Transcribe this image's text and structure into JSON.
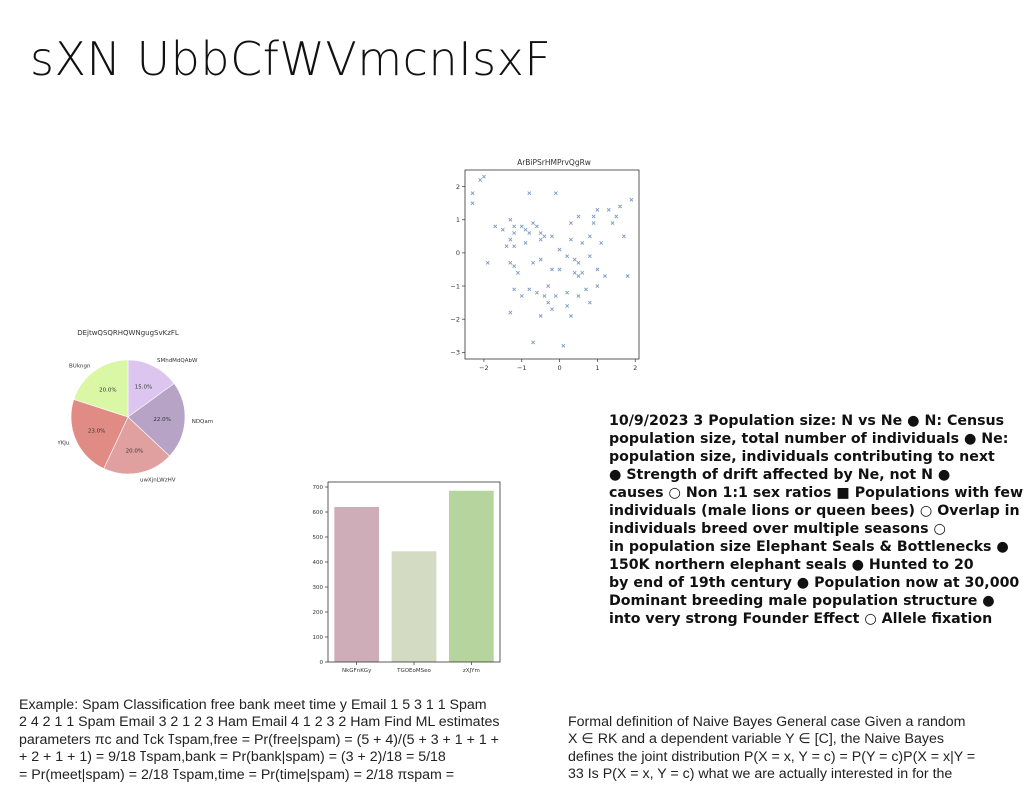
{
  "title": "sXN UbbCfWVmcnIsxF",
  "chart_data": [
    {
      "type": "scatter",
      "title": "ArBiPSrHMPrvQgRw",
      "marker": "x",
      "color": "#7a9cc6",
      "xlim": [
        -2.5,
        2.1
      ],
      "ylim": [
        -3.2,
        2.5
      ],
      "xticks": [
        "−2",
        "−1",
        "0",
        "1",
        "2"
      ],
      "yticks": [
        "2",
        "1",
        "0",
        "−1",
        "−2",
        "−3"
      ],
      "xtick_values": [
        -2,
        -1,
        0,
        1,
        2
      ],
      "ytick_values": [
        2,
        1,
        0,
        -1,
        -2,
        -3
      ],
      "points": [
        [
          -2.3,
          1.8
        ],
        [
          -2.3,
          1.5
        ],
        [
          -2.0,
          2.3
        ],
        [
          -2.1,
          2.2
        ],
        [
          -1.7,
          0.8
        ],
        [
          -1.9,
          -0.3
        ],
        [
          -1.4,
          0.2
        ],
        [
          -1.3,
          1.0
        ],
        [
          -1.2,
          0.8
        ],
        [
          -1.2,
          0.6
        ],
        [
          -1.3,
          0.4
        ],
        [
          -1.2,
          0.2
        ],
        [
          -1.3,
          -0.3
        ],
        [
          -1.2,
          -0.4
        ],
        [
          -1.0,
          0.8
        ],
        [
          -0.9,
          0.7
        ],
        [
          -0.8,
          0.6
        ],
        [
          -0.8,
          1.8
        ],
        [
          -0.9,
          0.3
        ],
        [
          -1.1,
          -0.6
        ],
        [
          -1.0,
          -1.3
        ],
        [
          -1.2,
          -1.1
        ],
        [
          -1.3,
          -1.8
        ],
        [
          -0.8,
          -1.1
        ],
        [
          -0.7,
          -0.3
        ],
        [
          -0.7,
          0.9
        ],
        [
          -0.6,
          0.8
        ],
        [
          -0.5,
          0.6
        ],
        [
          -0.5,
          0.4
        ],
        [
          -0.5,
          -0.2
        ],
        [
          -0.6,
          -1.2
        ],
        [
          -0.4,
          -1.3
        ],
        [
          -0.5,
          -1.9
        ],
        [
          -0.3,
          -1.5
        ],
        [
          -0.3,
          -1.0
        ],
        [
          -0.2,
          0.5
        ],
        [
          -0.2,
          -0.5
        ],
        [
          -0.1,
          1.8
        ],
        [
          0.0,
          0.1
        ],
        [
          0.0,
          -0.5
        ],
        [
          -0.1,
          -1.3
        ],
        [
          0.2,
          -1.2
        ],
        [
          0.2,
          -1.6
        ],
        [
          0.3,
          -1.9
        ],
        [
          0.3,
          0.4
        ],
        [
          0.4,
          -0.2
        ],
        [
          0.4,
          -0.6
        ],
        [
          0.5,
          -0.7
        ],
        [
          0.5,
          -0.3
        ],
        [
          0.5,
          -1.3
        ],
        [
          0.5,
          1.1
        ],
        [
          0.6,
          0.3
        ],
        [
          0.6,
          -0.6
        ],
        [
          0.7,
          -1.1
        ],
        [
          0.8,
          0.5
        ],
        [
          0.8,
          -0.1
        ],
        [
          0.8,
          -1.5
        ],
        [
          0.9,
          1.1
        ],
        [
          0.9,
          0.9
        ],
        [
          1.0,
          -0.5
        ],
        [
          1.0,
          1.3
        ],
        [
          1.0,
          -1.0
        ],
        [
          1.1,
          0.3
        ],
        [
          1.2,
          -0.7
        ],
        [
          1.3,
          1.3
        ],
        [
          1.4,
          0.9
        ],
        [
          1.5,
          1.1
        ],
        [
          1.6,
          1.4
        ],
        [
          1.7,
          0.5
        ],
        [
          1.8,
          -0.7
        ],
        [
          1.9,
          1.6
        ],
        [
          0.3,
          0.9
        ],
        [
          -0.7,
          -2.7
        ],
        [
          -0.4,
          0.5
        ],
        [
          0.1,
          -2.8
        ],
        [
          0.2,
          -0.1
        ],
        [
          -0.2,
          -1.7
        ],
        [
          -1.5,
          0.7
        ]
      ]
    },
    {
      "type": "pie",
      "title": "DEjtwQSQRHQWNgugSvKzFL",
      "slices": [
        {
          "label": "SMhdMdQAbW",
          "value": 15.0,
          "pct": "15.0%",
          "color": "#dcc6f0"
        },
        {
          "label": "NDQam",
          "value": 22.0,
          "pct": "22.0%",
          "color": "#b6a3c6"
        },
        {
          "label": "uwXjnLWzHV",
          "value": 20.0,
          "pct": "20.0%",
          "color": "#e0a0a0"
        },
        {
          "label": "RmKdIYKJu",
          "value": 23.0,
          "pct": "23.0%",
          "color": "#e08c84"
        },
        {
          "label": "BUkngn",
          "value": 20.0,
          "pct": "20.0%",
          "color": "#daf7a6"
        }
      ]
    },
    {
      "type": "bar",
      "title": "",
      "categories": [
        "NkGFnKGy",
        "TGOEoMSeo",
        "zXJYm"
      ],
      "values": [
        620,
        443,
        685
      ],
      "colors": [
        "#cfadb8",
        "#d3dcc3",
        "#b6d49e"
      ],
      "ylim": [
        0,
        720
      ],
      "yticks": [
        "0",
        "100",
        "200",
        "300",
        "400",
        "500",
        "600",
        "700"
      ],
      "ytick_values": [
        0,
        100,
        200,
        300,
        400,
        500,
        600,
        700
      ]
    }
  ],
  "notes_lines": [
    "10/9/2023 3 Population size: N vs Ne ● N: Census",
    "population size, total number of individuals ● Ne:",
    "population size, individuals contributing to next",
    "● Strength of drift affected by Ne, not N ●",
    "causes ○ Non 1:1 sex ratios ■ Populations with few",
    "individuals (male lions or queen bees) ○ Overlap in",
    "individuals breed over multiple seasons ○",
    "in population size Elephant Seals & Bottlenecks ●",
    "150K northern elephant seals ● Hunted to 20",
    "by end of 19th century ● Population now at 30,000",
    "Dominant breeding male population structure ●",
    "into very strong Founder Effect ○ Allele fixation"
  ],
  "left_text_lines": [
    "Example: Spam Classification free bank meet time y Email 1 5 3 1 1 Spam",
    "2 4 2 1 1 Spam Email 3 2 1 2 3 Ham Email 4 1 2 3 2 Ham Find ML estimates",
    "parameters πc and ߠck ߠspam,free = Pr(free|spam) = (5 + 4)/(5 + 3 + 1 + 1 +",
    "+ 2 + 1 + 1) = 9/18 ߠspam,bank = Pr(bank|spam) = (3 + 2)/18 = 5/18",
    "= Pr(meet|spam) = 2/18 ߠspam,time = Pr(time|spam) = 2/18 πspam ="
  ],
  "right_text_lines": [
    "Formal definition of Naive Bayes General case Given a random",
    "X ∈ RK and a dependent variable Y ∈ [C], the Naive Bayes",
    "defines the joint distribution P(X = x, Y = c) = P(Y = c)P(X = x|Y =",
    "33 Is P(X = x, Y = c) what we are actually interested in for the"
  ]
}
